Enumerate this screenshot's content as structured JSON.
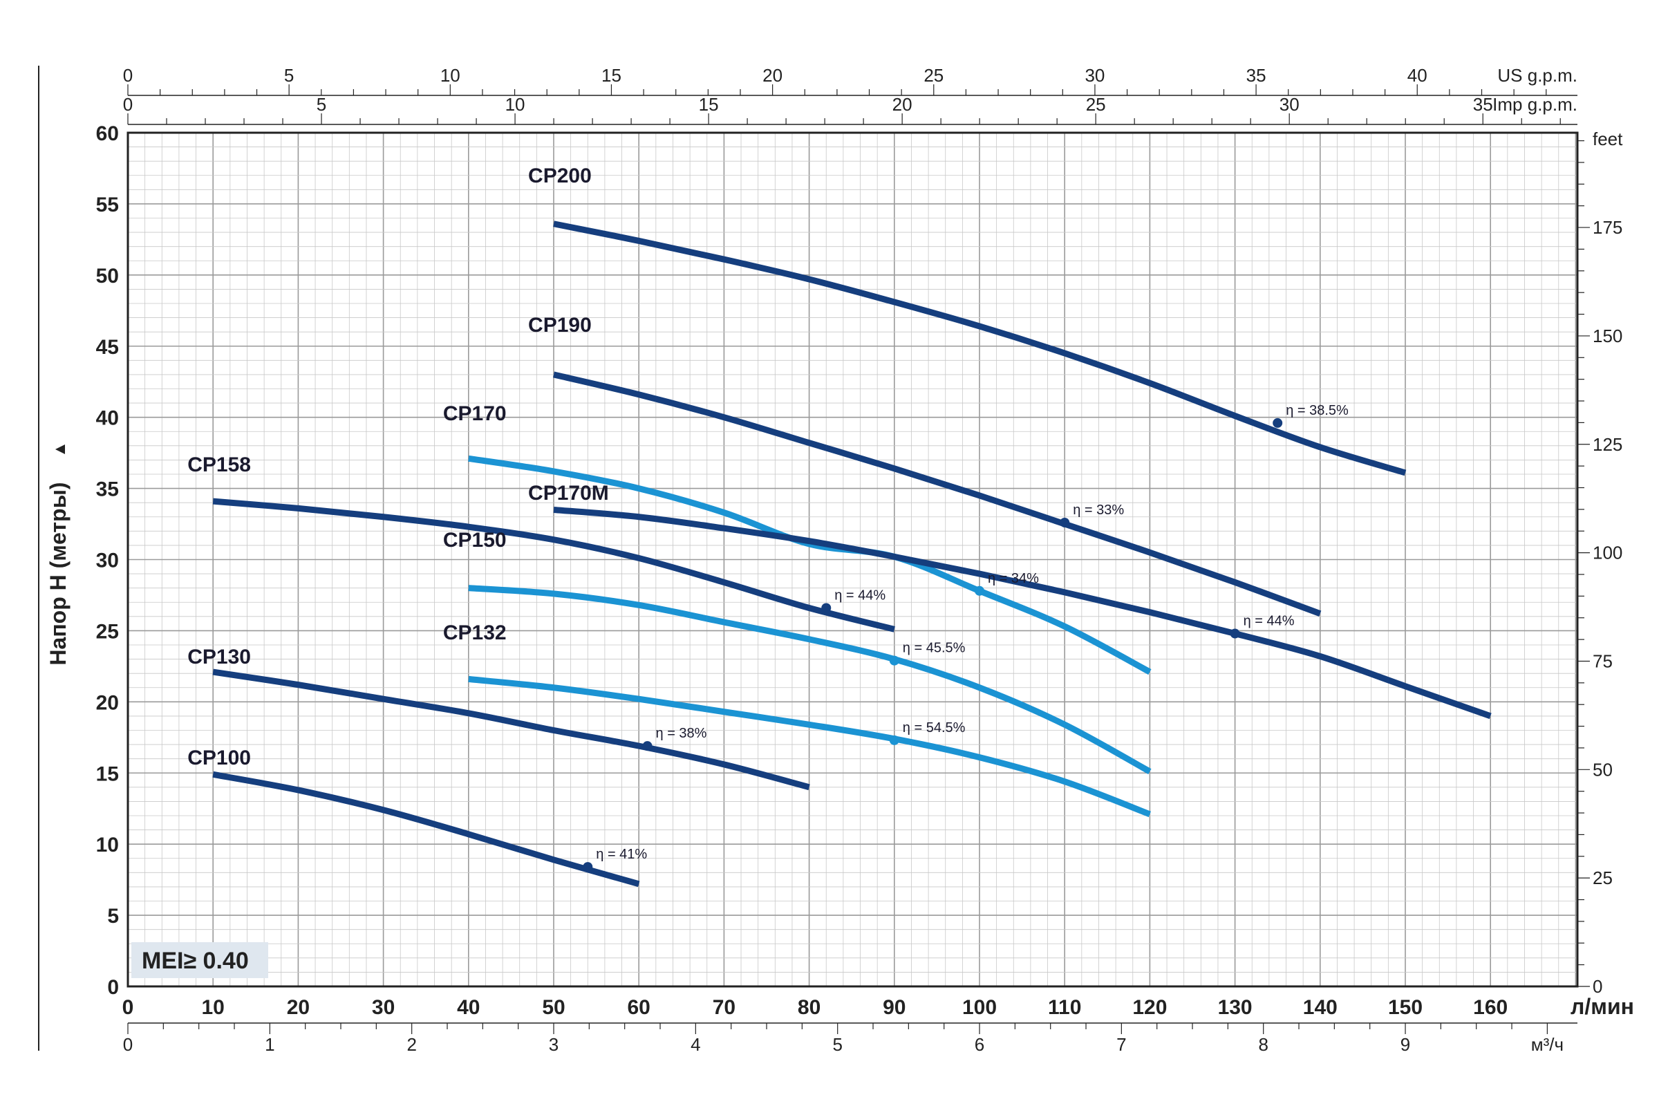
{
  "chart_data": {
    "type": "line",
    "title": "",
    "xlabel": "л/мин",
    "ylabel": "Напор Н (метры)",
    "xlim": [
      0,
      170
    ],
    "ylim": [
      0,
      60
    ],
    "grid": true,
    "legend": "none",
    "colors": {
      "dark": "#153e7e",
      "light": "#1b93d3",
      "grid": "#c8c8c8",
      "gridMajor": "#9a9a9a"
    },
    "x_ticks": [
      0,
      10,
      20,
      30,
      40,
      50,
      60,
      70,
      80,
      90,
      100,
      110,
      120,
      130,
      140,
      150,
      160
    ],
    "y_ticks": [
      0,
      5,
      10,
      15,
      20,
      25,
      30,
      35,
      40,
      45,
      50,
      55,
      60
    ],
    "secondary_axes": {
      "us_gpm": {
        "label": "US g.p.m.",
        "ticks": [
          0,
          5,
          10,
          15,
          20,
          25,
          30,
          35,
          40
        ],
        "factor": 3.785
      },
      "imp_gpm": {
        "label": "Imp g.p.m.",
        "ticks": [
          0,
          5,
          10,
          15,
          20,
          25,
          30,
          35
        ],
        "factor": 4.546
      },
      "m3h": {
        "label": "м³/ч",
        "ticks": [
          0,
          1,
          2,
          3,
          4,
          5,
          6,
          7,
          8,
          9
        ],
        "factor": 16.667
      },
      "feet": {
        "label": "feet",
        "ticks": [
          0,
          25,
          50,
          75,
          100,
          125,
          150,
          175
        ],
        "factor": 0.3048
      }
    },
    "series": [
      {
        "name": "CP200",
        "color": "dark",
        "x": [
          50,
          60,
          70,
          80,
          90,
          100,
          110,
          120,
          130,
          140,
          150
        ],
        "y": [
          53.6,
          52.4,
          51.1,
          49.7,
          48.1,
          46.4,
          44.5,
          42.4,
          40.1,
          37.9,
          36.1
        ],
        "eff_point": {
          "x": 135,
          "y": 39.6,
          "label": "η = 38.5%"
        }
      },
      {
        "name": "CP190",
        "color": "dark",
        "x": [
          50,
          60,
          70,
          80,
          90,
          100,
          110,
          120,
          130,
          140
        ],
        "y": [
          43.0,
          41.6,
          40.0,
          38.2,
          36.4,
          34.5,
          32.5,
          30.5,
          28.4,
          26.2
        ],
        "eff_point": {
          "x": 110,
          "y": 32.6,
          "label": "η = 33%"
        }
      },
      {
        "name": "CP170",
        "color": "light",
        "x": [
          40,
          50,
          60,
          70,
          80,
          90,
          100,
          110,
          120
        ],
        "y": [
          37.1,
          36.2,
          35.0,
          33.3,
          31.1,
          30.2,
          27.8,
          25.3,
          22.1
        ],
        "eff_point": {
          "x": 100,
          "y": 27.8,
          "label": "η = 34%"
        }
      },
      {
        "name": "CP170M",
        "color": "dark",
        "x": [
          50,
          60,
          70,
          80,
          90,
          100,
          110,
          120,
          130,
          140,
          150,
          160
        ],
        "y": [
          33.5,
          33.0,
          32.2,
          31.3,
          30.2,
          29.0,
          27.7,
          26.3,
          24.8,
          23.2,
          21.1,
          19.0
        ],
        "eff_point": {
          "x": 130,
          "y": 24.8,
          "label": "η = 44%"
        }
      },
      {
        "name": "CP158",
        "color": "dark",
        "x": [
          10,
          20,
          30,
          40,
          50,
          60,
          70,
          80,
          90
        ],
        "y": [
          34.1,
          33.6,
          33.0,
          32.3,
          31.4,
          30.1,
          28.4,
          26.6,
          25.1
        ],
        "eff_point": {
          "x": 82,
          "y": 26.6,
          "label": "η = 44%"
        }
      },
      {
        "name": "CP150",
        "color": "light",
        "x": [
          40,
          50,
          60,
          70,
          80,
          90,
          100,
          110,
          120
        ],
        "y": [
          28.0,
          27.6,
          26.8,
          25.6,
          24.4,
          23.0,
          21.0,
          18.4,
          15.1
        ],
        "eff_point": {
          "x": 90,
          "y": 22.9,
          "label": "η = 45.5%"
        }
      },
      {
        "name": "CP132",
        "color": "light",
        "x": [
          40,
          50,
          60,
          70,
          80,
          90,
          100,
          110,
          120
        ],
        "y": [
          21.6,
          21.0,
          20.2,
          19.3,
          18.4,
          17.4,
          16.1,
          14.4,
          12.1
        ],
        "eff_point": {
          "x": 90,
          "y": 17.3,
          "label": "η = 54.5%"
        }
      },
      {
        "name": "CP130",
        "color": "dark",
        "x": [
          10,
          20,
          30,
          40,
          50,
          60,
          70,
          80
        ],
        "y": [
          22.1,
          21.2,
          20.2,
          19.2,
          18.0,
          16.9,
          15.6,
          14.0
        ],
        "eff_point": {
          "x": 61,
          "y": 16.9,
          "label": "η = 38%"
        }
      },
      {
        "name": "CP100",
        "color": "dark",
        "x": [
          10,
          20,
          30,
          40,
          50,
          60
        ],
        "y": [
          14.9,
          13.8,
          12.4,
          10.7,
          8.9,
          7.2
        ],
        "eff_point": {
          "x": 54,
          "y": 8.4,
          "label": "η = 41%"
        }
      }
    ],
    "series_label_positions": {
      "CP200": [
        47,
        56.5
      ],
      "CP190": [
        47,
        46
      ],
      "CP170": [
        37,
        39.8
      ],
      "CP170M": [
        47,
        34.2
      ],
      "CP158": [
        7,
        36.2
      ],
      "CP150": [
        37,
        30.9
      ],
      "CP132": [
        37,
        24.4
      ],
      "CP130": [
        7,
        22.7
      ],
      "CP100": [
        7,
        15.6
      ]
    },
    "badge": "MEI≥ 0.40"
  }
}
